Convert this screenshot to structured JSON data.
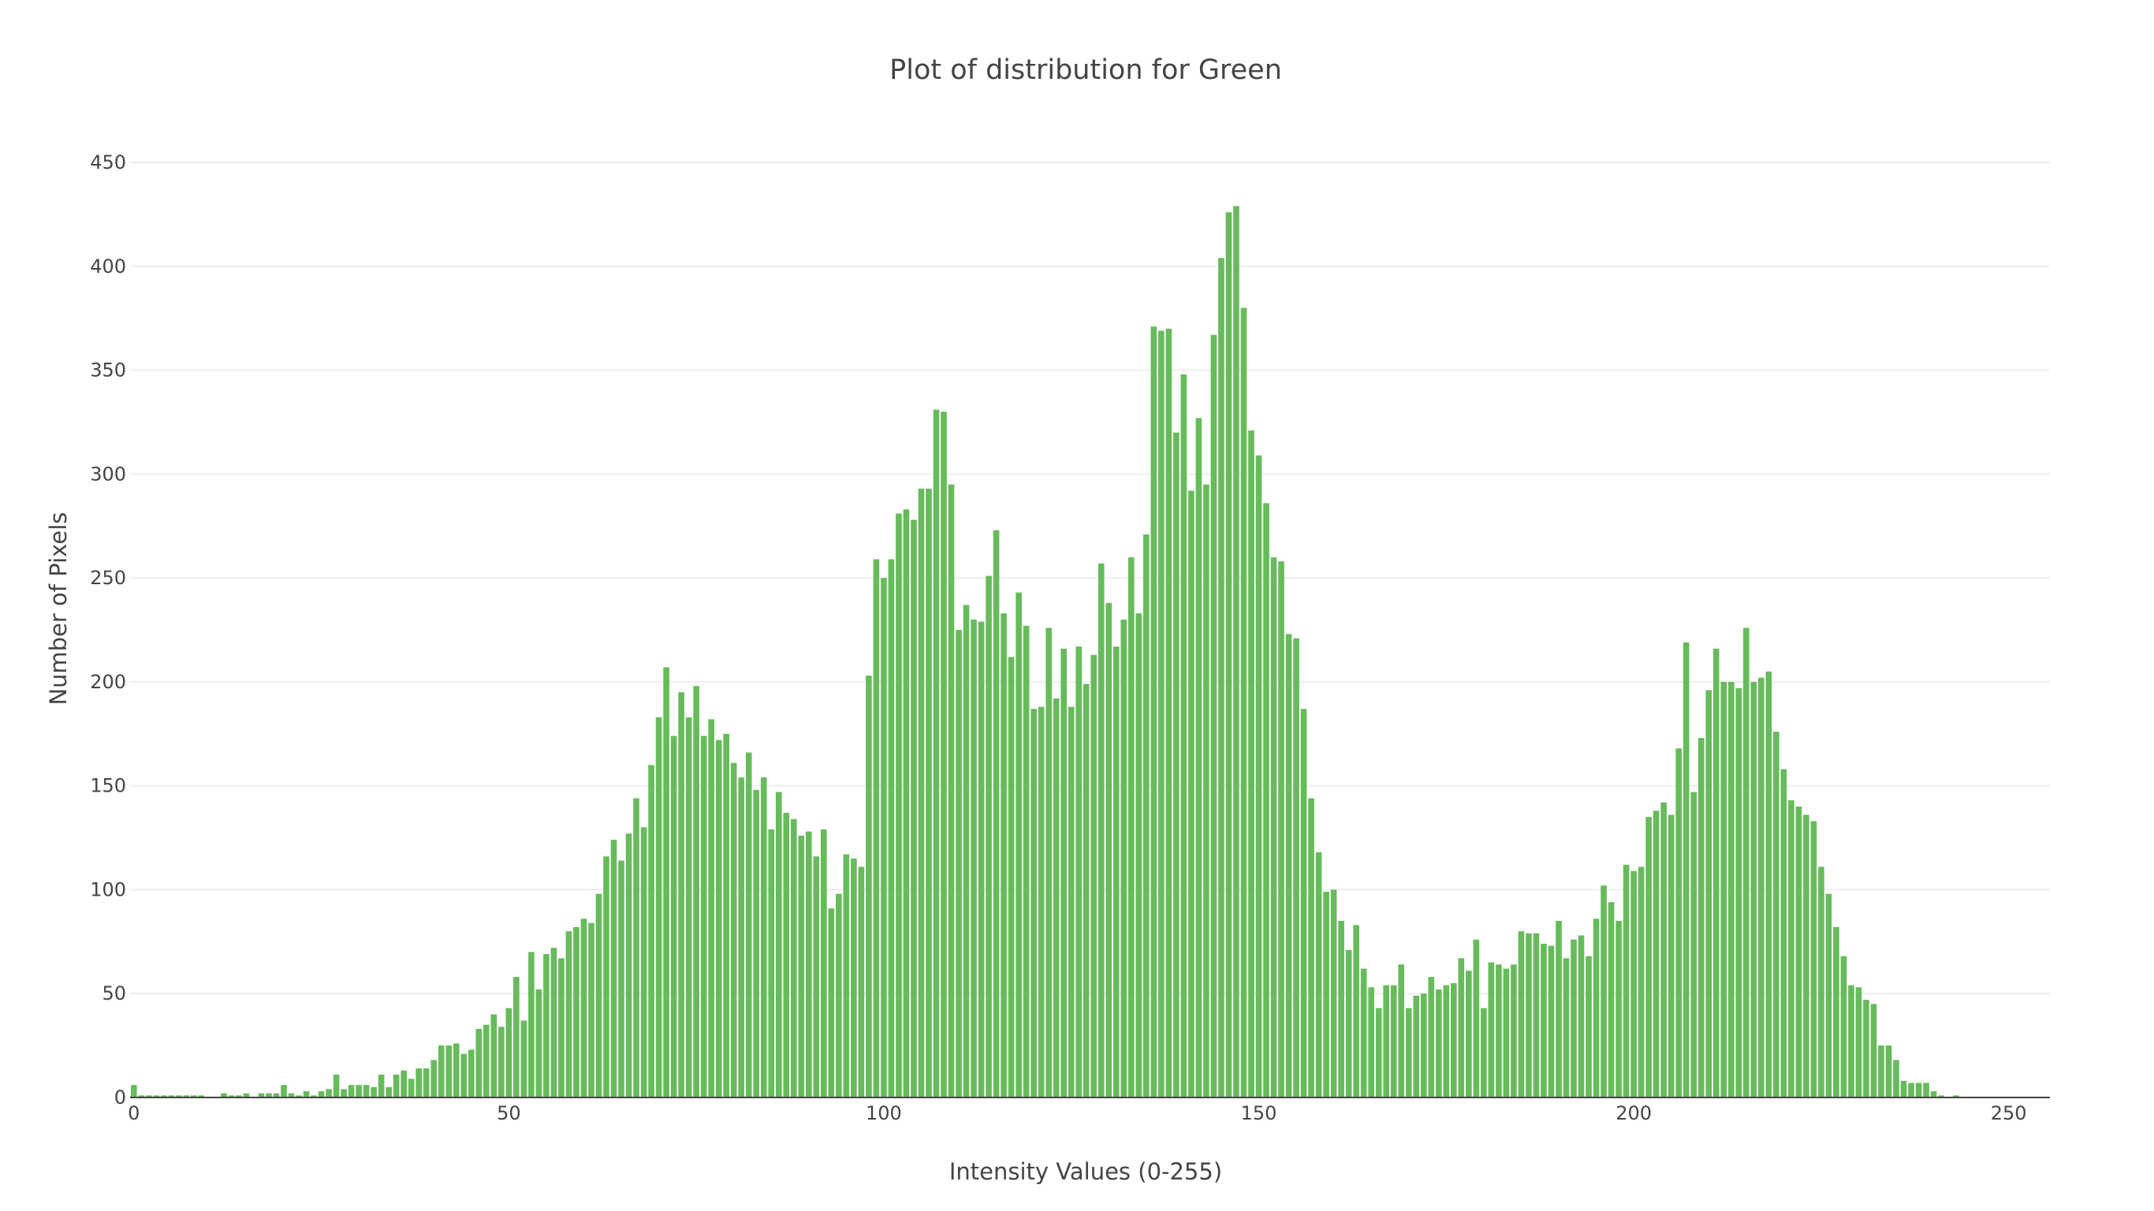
{
  "chart_data": {
    "type": "bar",
    "title": "Plot of distribution for Green",
    "xlabel": "Intensity Values (0-255)",
    "ylabel": "Number of Pixels",
    "xlim": [
      0,
      255
    ],
    "ylim": [
      0,
      450
    ],
    "xticks": [
      0,
      50,
      100,
      150,
      200,
      250
    ],
    "yticks": [
      0,
      50,
      100,
      150,
      200,
      250,
      300,
      350,
      400,
      450
    ],
    "grid": true,
    "legend": "none",
    "bar_color": "#66bb5a",
    "x": [
      0,
      1,
      2,
      3,
      4,
      5,
      6,
      7,
      8,
      9,
      10,
      11,
      12,
      13,
      14,
      15,
      16,
      17,
      18,
      19,
      20,
      21,
      22,
      23,
      24,
      25,
      26,
      27,
      28,
      29,
      30,
      31,
      32,
      33,
      34,
      35,
      36,
      37,
      38,
      39,
      40,
      41,
      42,
      43,
      44,
      45,
      46,
      47,
      48,
      49,
      50,
      51,
      52,
      53,
      54,
      55,
      56,
      57,
      58,
      59,
      60,
      61,
      62,
      63,
      64,
      65,
      66,
      67,
      68,
      69,
      70,
      71,
      72,
      73,
      74,
      75,
      76,
      77,
      78,
      79,
      80,
      81,
      82,
      83,
      84,
      85,
      86,
      87,
      88,
      89,
      90,
      91,
      92,
      93,
      94,
      95,
      96,
      97,
      98,
      99,
      100,
      101,
      102,
      103,
      104,
      105,
      106,
      107,
      108,
      109,
      110,
      111,
      112,
      113,
      114,
      115,
      116,
      117,
      118,
      119,
      120,
      121,
      122,
      123,
      124,
      125,
      126,
      127,
      128,
      129,
      130,
      131,
      132,
      133,
      134,
      135,
      136,
      137,
      138,
      139,
      140,
      141,
      142,
      143,
      144,
      145,
      146,
      147,
      148,
      149,
      150,
      151,
      152,
      153,
      154,
      155,
      156,
      157,
      158,
      159,
      160,
      161,
      162,
      163,
      164,
      165,
      166,
      167,
      168,
      169,
      170,
      171,
      172,
      173,
      174,
      175,
      176,
      177,
      178,
      179,
      180,
      181,
      182,
      183,
      184,
      185,
      186,
      187,
      188,
      189,
      190,
      191,
      192,
      193,
      194,
      195,
      196,
      197,
      198,
      199,
      200,
      201,
      202,
      203,
      204,
      205,
      206,
      207,
      208,
      209,
      210,
      211,
      212,
      213,
      214,
      215,
      216,
      217,
      218,
      219,
      220,
      221,
      222,
      223,
      224,
      225,
      226,
      227,
      228,
      229,
      230,
      231,
      232,
      233,
      234,
      235,
      236,
      237,
      238,
      239,
      240,
      241,
      242,
      243,
      244,
      245,
      246,
      247,
      248,
      249,
      250,
      251,
      252,
      253,
      254,
      255
    ],
    "values": [
      6,
      1,
      1,
      1,
      1,
      1,
      1,
      1,
      1,
      1,
      0,
      0,
      2,
      1,
      1,
      2,
      0,
      2,
      2,
      2,
      6,
      2,
      1,
      3,
      1,
      3,
      4,
      11,
      4,
      6,
      6,
      6,
      5,
      11,
      5,
      11,
      13,
      9,
      14,
      14,
      18,
      25,
      25,
      26,
      21,
      23,
      33,
      35,
      40,
      34,
      43,
      58,
      37,
      70,
      52,
      69,
      72,
      67,
      80,
      82,
      86,
      84,
      98,
      116,
      124,
      114,
      127,
      144,
      130,
      160,
      183,
      207,
      174,
      195,
      183,
      198,
      174,
      182,
      172,
      175,
      161,
      154,
      166,
      148,
      154,
      129,
      147,
      137,
      134,
      126,
      128,
      116,
      129,
      91,
      98,
      117,
      115,
      111,
      203,
      259,
      250,
      259,
      281,
      283,
      278,
      293,
      293,
      331,
      330,
      295,
      225,
      237,
      230,
      229,
      251,
      273,
      233,
      212,
      243,
      227,
      187,
      188,
      226,
      192,
      216,
      188,
      217,
      199,
      213,
      257,
      238,
      217,
      230,
      260,
      233,
      271,
      371,
      369,
      370,
      320,
      348,
      292,
      327,
      295,
      367,
      404,
      426,
      429,
      380,
      321,
      309,
      286,
      260,
      258,
      223,
      221,
      187,
      144,
      118,
      99,
      100,
      85,
      71,
      83,
      62,
      53,
      43,
      54,
      54,
      64,
      43,
      49,
      50,
      58,
      52,
      54,
      55,
      67,
      61,
      76,
      43,
      65,
      64,
      62,
      64,
      80,
      79,
      79,
      74,
      73,
      85,
      67,
      76,
      78,
      68,
      86,
      102,
      94,
      85,
      112,
      109,
      111,
      135,
      138,
      142,
      136,
      168,
      219,
      147,
      173,
      196,
      216,
      200,
      200,
      197,
      226,
      200,
      202,
      205,
      176,
      158,
      143,
      140,
      136,
      133,
      111,
      98,
      82,
      68,
      54,
      53,
      47,
      45,
      25,
      25,
      18,
      8,
      7,
      7,
      7,
      3,
      1,
      0,
      1,
      0,
      0,
      0,
      0,
      0,
      0,
      0,
      0,
      0,
      0,
      0,
      0
    ]
  }
}
